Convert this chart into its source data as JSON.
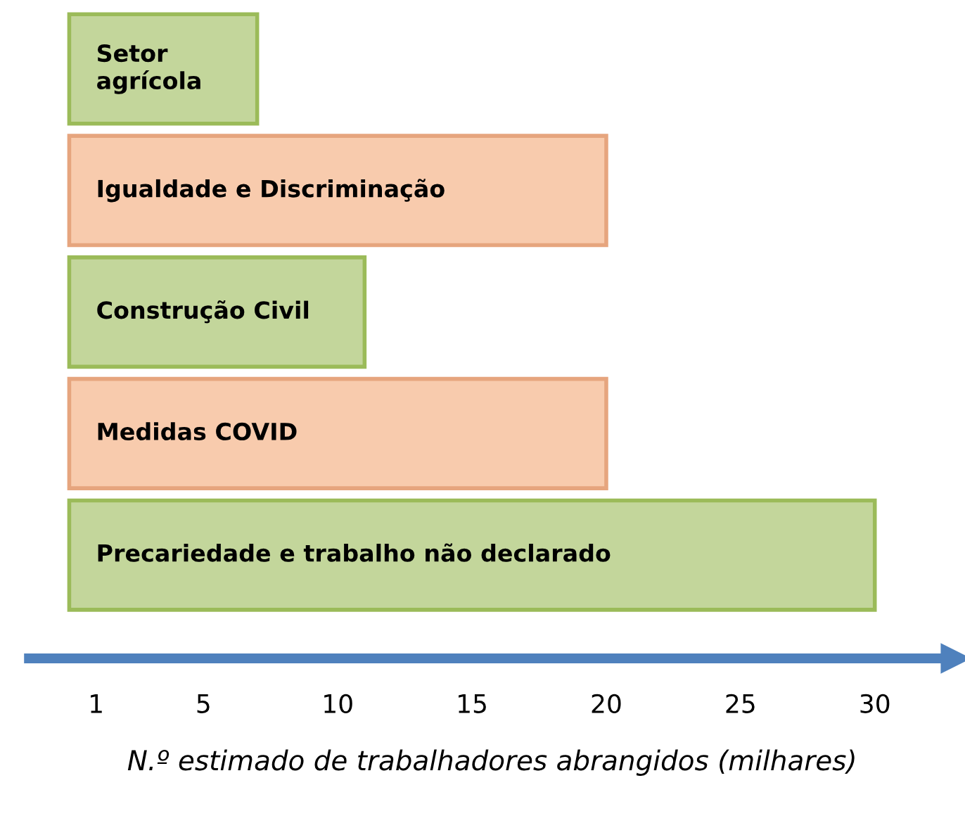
{
  "chart_data": {
    "type": "bar",
    "orientation": "horizontal",
    "xlabel": "N.º estimado de trabalhadores abrangidos (milhares)",
    "categories": [
      "Setor\nagrícola",
      "Igualdade e Discriminação",
      "Construção Civil",
      "Medidas COVID",
      "Precariedade e trabalho não declarado"
    ],
    "values": [
      7,
      20,
      11,
      20,
      30
    ],
    "colors": [
      "#c3d69b",
      "#f8cbad",
      "#c3d69b",
      "#f8cbad",
      "#c3d69b"
    ],
    "xlim": [
      -1.5,
      33
    ],
    "xticks": [
      1,
      5,
      10,
      15,
      20,
      25,
      30
    ],
    "grid": false,
    "legend": false
  }
}
